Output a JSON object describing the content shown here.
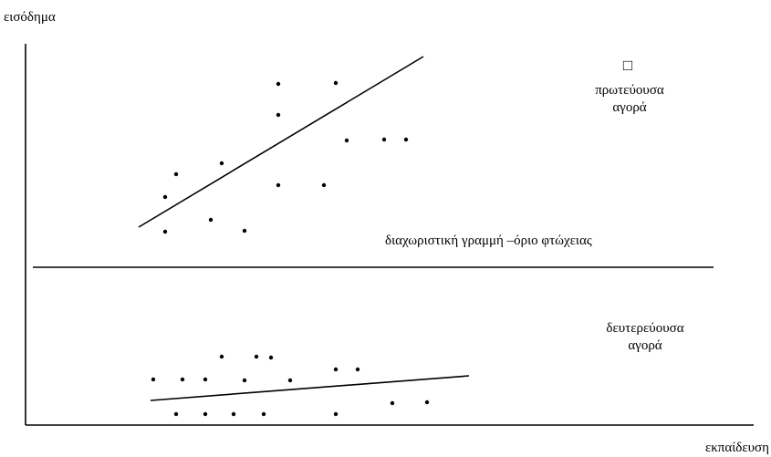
{
  "labels": {
    "y_axis": "εισόδημα",
    "x_axis": "εκπαίδευση",
    "primary_market": [
      "πρωτεύουσα",
      "αγορά"
    ],
    "divider": "διαχωριστική γραμμή –όριο φτώχειας",
    "secondary_market": [
      "δευτερεύουσα",
      "αγορά"
    ]
  },
  "symbols": {
    "small_square": "□"
  },
  "colors": {
    "ink": "#000000",
    "background": "#ffffff"
  }
}
